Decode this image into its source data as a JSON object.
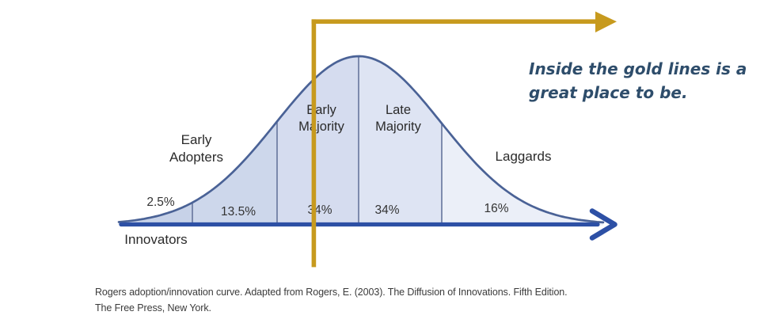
{
  "colors": {
    "gold": "#C79A1E",
    "curve_stroke": "#4a6296",
    "axis_blue": "#2d50a5",
    "division_line": "#66759c",
    "annotation_text": "#2e4d6b",
    "segment_fills": [
      "#c7d2e8",
      "#cdd7eb",
      "#d5dcef",
      "#dee4f3",
      "#ebeff8"
    ]
  },
  "annotation": {
    "line1": "Inside the gold lines is a",
    "line2": "great place to be."
  },
  "caption": {
    "line1": "Rogers adoption/innovation curve. Adapted from Rogers, E. (2003). The Diffusion of Innovations. Fifth Edition.",
    "line2": "The Free Press, New York."
  },
  "chart_data": {
    "type": "area",
    "title": "Rogers adoption/innovation curve",
    "description": "Bell curve (normal distribution) of innovation adopter categories, divided into five segments, with a gold right-angle guideline overlay spanning the Early Majority through Laggards boundary region",
    "categories": [
      "Innovators",
      "Early Adopters",
      "Early Majority",
      "Late Majority",
      "Laggards"
    ],
    "values": [
      2.5,
      13.5,
      34,
      34,
      16
    ],
    "segments": [
      {
        "label": "Innovators",
        "percent": "2.5%",
        "value": 2.5
      },
      {
        "label": "Early Adopters",
        "percent": "13.5%",
        "value": 13.5
      },
      {
        "label": "Early Majority",
        "percent": "34%",
        "value": 34
      },
      {
        "label": "Late Majority",
        "percent": "34%",
        "value": 34
      },
      {
        "label": "Laggards",
        "percent": "16%",
        "value": 16
      }
    ],
    "x_axis": {
      "label": "",
      "arrow": true
    },
    "grid": false,
    "legend": false,
    "annotations": [
      "Inside the gold lines is a great place to be."
    ]
  }
}
